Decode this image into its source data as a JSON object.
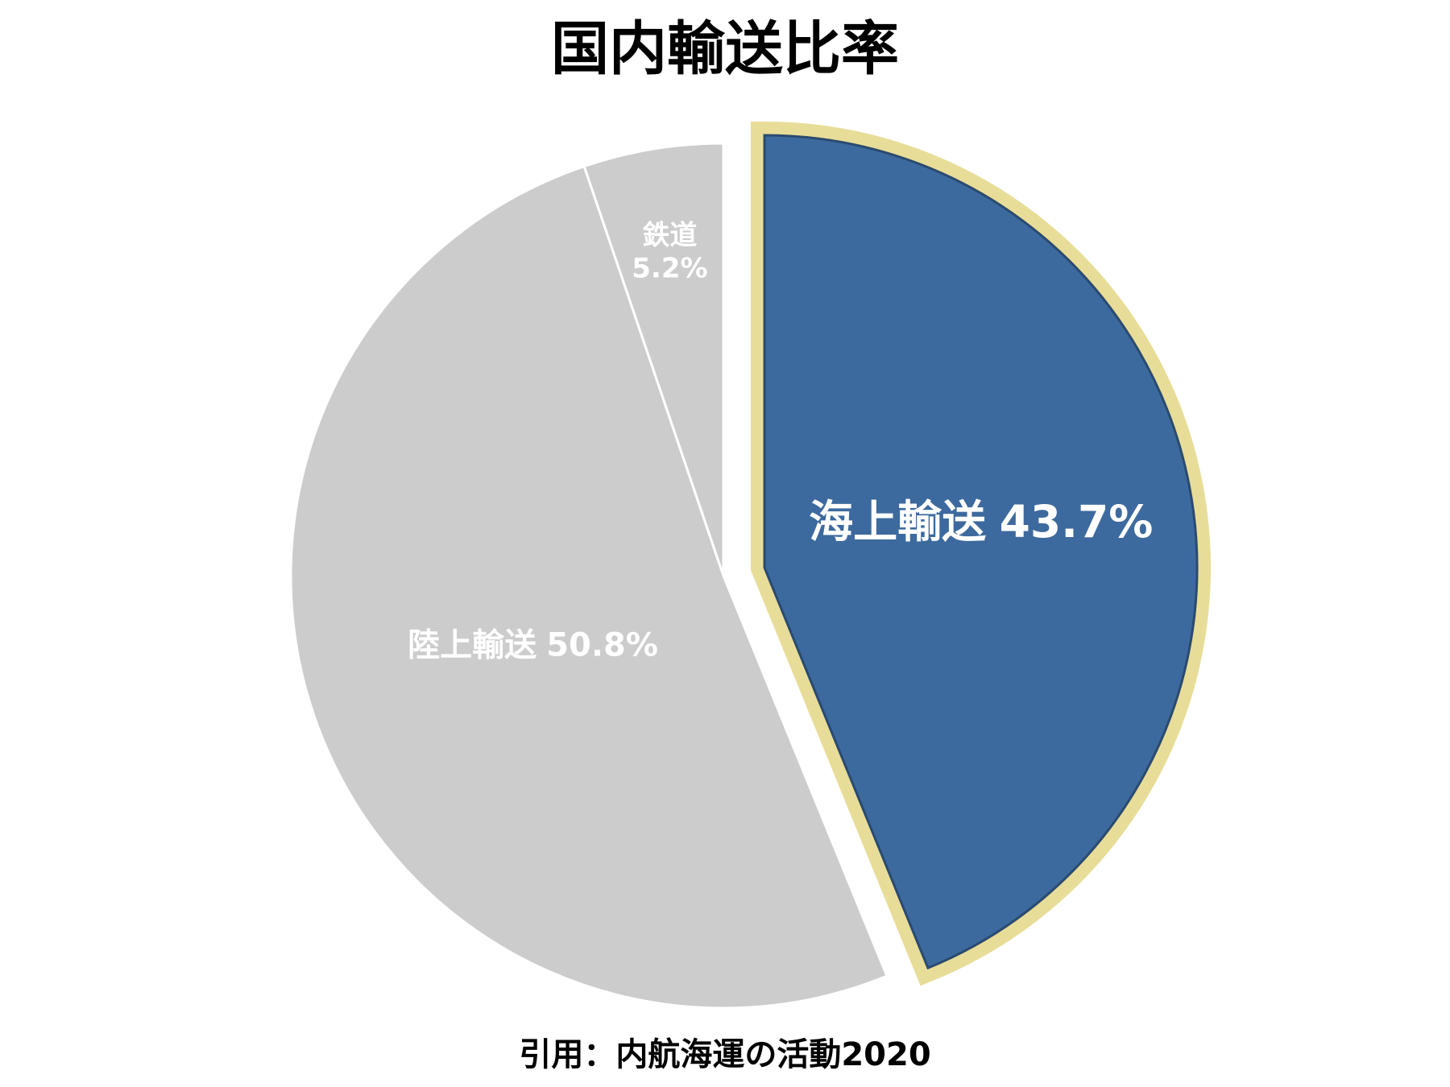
{
  "chart_data": {
    "type": "pie",
    "title": "国内輸送比率",
    "categories": [
      "海上輸送",
      "陸上輸送",
      "鉄道"
    ],
    "values": [
      43.7,
      50.8,
      5.2
    ],
    "value_labels": [
      "43.7%",
      "50.8%",
      "5.2%"
    ],
    "colors": [
      "#3d6a9e",
      "#cccccc",
      "#cccccc"
    ],
    "explode": [
      true,
      false,
      false
    ],
    "source": "引用：内航海運の活動2020"
  }
}
